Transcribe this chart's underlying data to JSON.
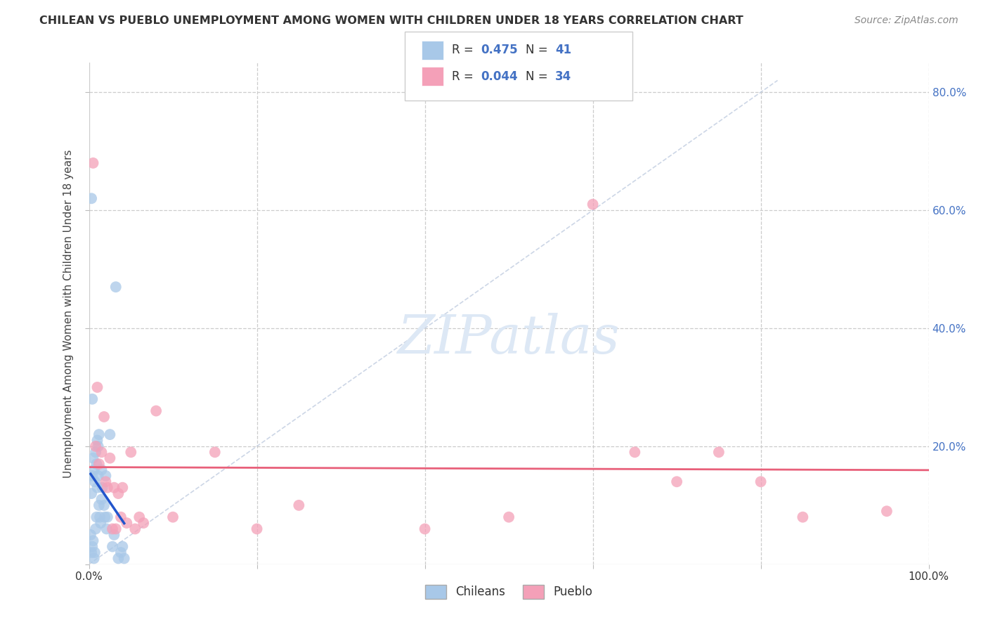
{
  "title": "CHILEAN VS PUEBLO UNEMPLOYMENT AMONG WOMEN WITH CHILDREN UNDER 18 YEARS CORRELATION CHART",
  "source": "Source: ZipAtlas.com",
  "ylabel": "Unemployment Among Women with Children Under 18 years",
  "xlim": [
    0.0,
    1.0
  ],
  "ylim": [
    0.0,
    0.85
  ],
  "legend_R1": "0.475",
  "legend_N1": "41",
  "legend_R2": "0.044",
  "legend_N2": "34",
  "color_chilean": "#a8c8e8",
  "color_pueblo": "#f4a0b8",
  "regression_line_color_blue": "#2255cc",
  "regression_line_color_pink": "#e8607a",
  "diagonal_color": "#c0cce0",
  "watermark_color": "#dde8f5",
  "chilean_x": [
    0.002,
    0.003,
    0.003,
    0.004,
    0.004,
    0.005,
    0.005,
    0.006,
    0.006,
    0.007,
    0.007,
    0.008,
    0.008,
    0.009,
    0.009,
    0.01,
    0.01,
    0.011,
    0.011,
    0.012,
    0.012,
    0.013,
    0.014,
    0.015,
    0.015,
    0.016,
    0.018,
    0.019,
    0.02,
    0.021,
    0.022,
    0.025,
    0.028,
    0.03,
    0.032,
    0.035,
    0.038,
    0.04,
    0.042,
    0.003,
    0.004
  ],
  "chilean_y": [
    0.05,
    0.12,
    0.02,
    0.15,
    0.03,
    0.18,
    0.04,
    0.16,
    0.01,
    0.14,
    0.02,
    0.19,
    0.06,
    0.17,
    0.08,
    0.21,
    0.13,
    0.2,
    0.15,
    0.22,
    0.1,
    0.08,
    0.07,
    0.11,
    0.16,
    0.13,
    0.1,
    0.08,
    0.15,
    0.06,
    0.08,
    0.22,
    0.03,
    0.05,
    0.47,
    0.01,
    0.02,
    0.03,
    0.01,
    0.62,
    0.28
  ],
  "pueblo_x": [
    0.005,
    0.008,
    0.01,
    0.012,
    0.015,
    0.018,
    0.02,
    0.022,
    0.025,
    0.028,
    0.03,
    0.032,
    0.035,
    0.038,
    0.04,
    0.045,
    0.05,
    0.055,
    0.06,
    0.065,
    0.08,
    0.1,
    0.15,
    0.2,
    0.25,
    0.4,
    0.5,
    0.6,
    0.65,
    0.7,
    0.75,
    0.8,
    0.85,
    0.95
  ],
  "pueblo_y": [
    0.68,
    0.2,
    0.3,
    0.17,
    0.19,
    0.25,
    0.14,
    0.13,
    0.18,
    0.06,
    0.13,
    0.06,
    0.12,
    0.08,
    0.13,
    0.07,
    0.19,
    0.06,
    0.08,
    0.07,
    0.26,
    0.08,
    0.19,
    0.06,
    0.1,
    0.06,
    0.08,
    0.61,
    0.19,
    0.14,
    0.19,
    0.14,
    0.08,
    0.09
  ]
}
